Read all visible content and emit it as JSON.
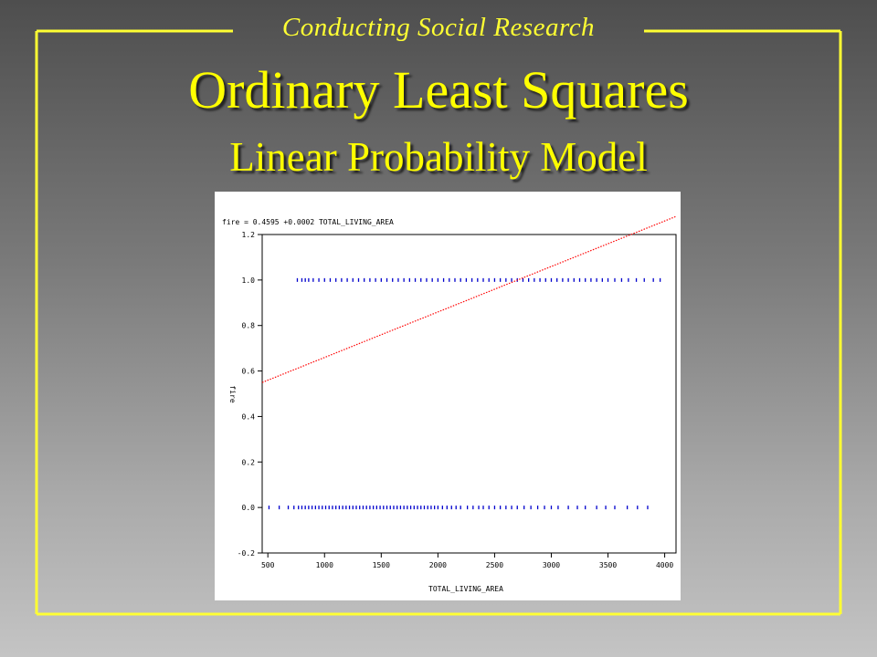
{
  "slide": {
    "header_label": "Conducting Social Research",
    "title": "Ordinary Least Squares",
    "subtitle": "Linear Probability Model",
    "frame_color": "#ffff33",
    "title_color": "#ffff00"
  },
  "chart_data": {
    "type": "scatter",
    "title": "fire = 0.4595 +0.0002 TOTAL_LIVING_AREA",
    "xlabel": "TOTAL_LIVING_AREA",
    "ylabel": "fire",
    "xlim": [
      450,
      4100
    ],
    "ylim": [
      -0.2,
      1.2
    ],
    "x_ticks": [
      "500",
      "1000",
      "1500",
      "2000",
      "2500",
      "3000",
      "3500",
      "4000"
    ],
    "y_ticks": [
      "1.2",
      "1.0",
      "0.8",
      "0.6",
      "0.4",
      "0.2",
      "0.0",
      "-0.2"
    ],
    "grid": false,
    "point_color": "#0000cc",
    "fit_color": "#ff0000",
    "series": [
      {
        "values": [
          [
            760,
            1
          ],
          [
            800,
            1
          ],
          [
            830,
            1
          ],
          [
            860,
            1
          ],
          [
            900,
            1
          ],
          [
            950,
            1
          ],
          [
            1000,
            1
          ],
          [
            1050,
            1
          ],
          [
            1100,
            1
          ],
          [
            1150,
            1
          ],
          [
            1200,
            1
          ],
          [
            1250,
            1
          ],
          [
            1300,
            1
          ],
          [
            1350,
            1
          ],
          [
            1400,
            1
          ],
          [
            1450,
            1
          ],
          [
            1500,
            1
          ],
          [
            1550,
            1
          ],
          [
            1600,
            1
          ],
          [
            1650,
            1
          ],
          [
            1700,
            1
          ],
          [
            1750,
            1
          ],
          [
            1800,
            1
          ],
          [
            1850,
            1
          ],
          [
            1900,
            1
          ],
          [
            1950,
            1
          ],
          [
            2000,
            1
          ],
          [
            2050,
            1
          ],
          [
            2100,
            1
          ],
          [
            2150,
            1
          ],
          [
            2200,
            1
          ],
          [
            2250,
            1
          ],
          [
            2300,
            1
          ],
          [
            2350,
            1
          ],
          [
            2400,
            1
          ],
          [
            2450,
            1
          ],
          [
            2500,
            1
          ],
          [
            2550,
            1
          ],
          [
            2600,
            1
          ],
          [
            2650,
            1
          ],
          [
            2700,
            1
          ],
          [
            2750,
            1
          ],
          [
            2800,
            1
          ],
          [
            2850,
            1
          ],
          [
            2900,
            1
          ],
          [
            2950,
            1
          ],
          [
            3000,
            1
          ],
          [
            3050,
            1
          ],
          [
            3100,
            1
          ],
          [
            3150,
            1
          ],
          [
            3200,
            1
          ],
          [
            3250,
            1
          ],
          [
            3300,
            1
          ],
          [
            3350,
            1
          ],
          [
            3400,
            1
          ],
          [
            3450,
            1
          ],
          [
            3500,
            1
          ],
          [
            3560,
            1
          ],
          [
            3620,
            1
          ],
          [
            3680,
            1
          ],
          [
            3750,
            1
          ],
          [
            3820,
            1
          ],
          [
            3900,
            1
          ],
          [
            3960,
            1
          ]
        ]
      },
      {
        "values": [
          [
            510,
            0
          ],
          [
            600,
            0
          ],
          [
            680,
            0
          ],
          [
            730,
            0
          ],
          [
            770,
            0
          ],
          [
            800,
            0
          ],
          [
            830,
            0
          ],
          [
            860,
            0
          ],
          [
            890,
            0
          ],
          [
            920,
            0
          ],
          [
            950,
            0
          ],
          [
            980,
            0
          ],
          [
            1010,
            0
          ],
          [
            1040,
            0
          ],
          [
            1070,
            0
          ],
          [
            1100,
            0
          ],
          [
            1130,
            0
          ],
          [
            1160,
            0
          ],
          [
            1190,
            0
          ],
          [
            1220,
            0
          ],
          [
            1250,
            0
          ],
          [
            1280,
            0
          ],
          [
            1310,
            0
          ],
          [
            1340,
            0
          ],
          [
            1370,
            0
          ],
          [
            1400,
            0
          ],
          [
            1430,
            0
          ],
          [
            1460,
            0
          ],
          [
            1490,
            0
          ],
          [
            1520,
            0
          ],
          [
            1550,
            0
          ],
          [
            1580,
            0
          ],
          [
            1610,
            0
          ],
          [
            1640,
            0
          ],
          [
            1670,
            0
          ],
          [
            1700,
            0
          ],
          [
            1730,
            0
          ],
          [
            1760,
            0
          ],
          [
            1790,
            0
          ],
          [
            1820,
            0
          ],
          [
            1850,
            0
          ],
          [
            1880,
            0
          ],
          [
            1910,
            0
          ],
          [
            1940,
            0
          ],
          [
            1970,
            0
          ],
          [
            2000,
            0
          ],
          [
            2040,
            0
          ],
          [
            2080,
            0
          ],
          [
            2120,
            0
          ],
          [
            2160,
            0
          ],
          [
            2200,
            0
          ],
          [
            2260,
            0
          ],
          [
            2310,
            0
          ],
          [
            2360,
            0
          ],
          [
            2400,
            0
          ],
          [
            2450,
            0
          ],
          [
            2500,
            0
          ],
          [
            2550,
            0
          ],
          [
            2600,
            0
          ],
          [
            2650,
            0
          ],
          [
            2700,
            0
          ],
          [
            2760,
            0
          ],
          [
            2820,
            0
          ],
          [
            2880,
            0
          ],
          [
            2940,
            0
          ],
          [
            3000,
            0
          ],
          [
            3060,
            0
          ],
          [
            3150,
            0
          ],
          [
            3230,
            0
          ],
          [
            3300,
            0
          ],
          [
            3400,
            0
          ],
          [
            3480,
            0
          ],
          [
            3560,
            0
          ],
          [
            3670,
            0
          ],
          [
            3760,
            0
          ],
          [
            3850,
            0
          ]
        ]
      }
    ],
    "fit_line": {
      "intercept": 0.4595,
      "slope": 0.0002,
      "x_range": [
        450,
        4100
      ]
    }
  }
}
